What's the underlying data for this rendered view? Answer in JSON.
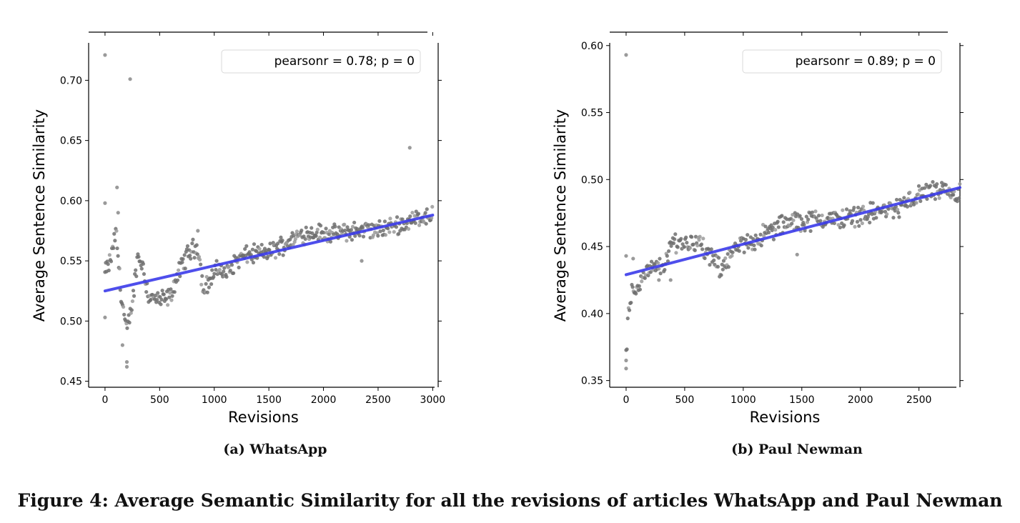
{
  "figure": {
    "title": "Figure 4: Average Semantic Similarity for all the revisions of articles WhatsApp and Paul Newman"
  },
  "colors": {
    "points": "#6e6e6e",
    "points_light": "#9a9a9a",
    "regression": "#3b3bea",
    "axes": "#000000"
  },
  "chart_data": [
    {
      "id": "whatsapp",
      "type": "scatter",
      "caption": "(a) WhatsApp",
      "xlabel": "Revisions",
      "ylabel": "Average Sentence Similarity",
      "xlim": [
        -150,
        3050
      ],
      "ylim": [
        0.445,
        0.74
      ],
      "xticks": [
        0,
        500,
        1000,
        1500,
        2000,
        2500,
        3000
      ],
      "yticks": [
        0.45,
        0.5,
        0.55,
        0.6,
        0.65,
        0.7
      ],
      "ytick_labels": [
        "0.45",
        "0.50",
        "0.55",
        "0.60",
        "0.65",
        "0.70"
      ],
      "legend": "pearsonr = 0.78; p = 0",
      "legend_position": "top-right",
      "regression": [
        [
          0,
          0.525
        ],
        [
          3000,
          0.588
        ]
      ],
      "trend": [
        [
          0,
          0.54
        ],
        [
          50,
          0.55
        ],
        [
          100,
          0.575
        ],
        [
          150,
          0.52
        ],
        [
          200,
          0.49
        ],
        [
          250,
          0.515
        ],
        [
          300,
          0.555
        ],
        [
          350,
          0.545
        ],
        [
          400,
          0.52
        ],
        [
          500,
          0.517
        ],
        [
          600,
          0.52
        ],
        [
          650,
          0.535
        ],
        [
          700,
          0.545
        ],
        [
          750,
          0.555
        ],
        [
          800,
          0.56
        ],
        [
          850,
          0.562
        ],
        [
          900,
          0.525
        ],
        [
          1000,
          0.54
        ],
        [
          1050,
          0.545
        ],
        [
          1100,
          0.538
        ],
        [
          1200,
          0.55
        ],
        [
          1300,
          0.555
        ],
        [
          1400,
          0.556
        ],
        [
          1500,
          0.557
        ],
        [
          1600,
          0.562
        ],
        [
          1700,
          0.567
        ],
        [
          1800,
          0.572
        ],
        [
          1900,
          0.574
        ],
        [
          2000,
          0.573
        ],
        [
          2100,
          0.572
        ],
        [
          2200,
          0.574
        ],
        [
          2300,
          0.575
        ],
        [
          2400,
          0.576
        ],
        [
          2500,
          0.575
        ],
        [
          2600,
          0.578
        ],
        [
          2700,
          0.58
        ],
        [
          2800,
          0.583
        ],
        [
          2900,
          0.587
        ],
        [
          3000,
          0.588
        ]
      ],
      "outliers": [
        [
          0,
          0.721
        ],
        [
          230,
          0.701
        ],
        [
          2790,
          0.644
        ],
        [
          110,
          0.611
        ],
        [
          0,
          0.598
        ],
        [
          850,
          0.575
        ],
        [
          2350,
          0.55
        ],
        [
          0,
          0.503
        ],
        [
          200,
          0.462
        ],
        [
          200,
          0.466
        ],
        [
          120,
          0.59
        ],
        [
          160,
          0.48
        ]
      ]
    },
    {
      "id": "paul-newman",
      "type": "scatter",
      "caption": "(b) Paul Newman",
      "xlabel": "Revisions",
      "ylabel": "Average Sentence Similarity",
      "xlim": [
        -140,
        2850
      ],
      "ylim": [
        0.345,
        0.61
      ],
      "xticks": [
        0,
        500,
        1000,
        1500,
        2000,
        2500
      ],
      "yticks": [
        0.35,
        0.4,
        0.45,
        0.5,
        0.55,
        0.6
      ],
      "ytick_labels": [
        "0.35",
        "0.40",
        "0.45",
        "0.50",
        "0.55",
        "0.60"
      ],
      "legend": "pearsonr = 0.89; p = 0",
      "legend_position": "top-right",
      "regression": [
        [
          0,
          0.429
        ],
        [
          2850,
          0.494
        ]
      ],
      "trend": [
        [
          0,
          0.37
        ],
        [
          20,
          0.4
        ],
        [
          50,
          0.415
        ],
        [
          100,
          0.42
        ],
        [
          150,
          0.43
        ],
        [
          200,
          0.432
        ],
        [
          300,
          0.435
        ],
        [
          350,
          0.44
        ],
        [
          400,
          0.455
        ],
        [
          500,
          0.452
        ],
        [
          600,
          0.455
        ],
        [
          650,
          0.45
        ],
        [
          700,
          0.443
        ],
        [
          750,
          0.44
        ],
        [
          800,
          0.432
        ],
        [
          850,
          0.44
        ],
        [
          900,
          0.445
        ],
        [
          950,
          0.448
        ],
        [
          1000,
          0.452
        ],
        [
          1100,
          0.455
        ],
        [
          1200,
          0.46
        ],
        [
          1300,
          0.465
        ],
        [
          1400,
          0.468
        ],
        [
          1500,
          0.469
        ],
        [
          1600,
          0.47
        ],
        [
          1700,
          0.471
        ],
        [
          1800,
          0.47
        ],
        [
          1900,
          0.472
        ],
        [
          2000,
          0.474
        ],
        [
          2100,
          0.475
        ],
        [
          2200,
          0.477
        ],
        [
          2300,
          0.478
        ],
        [
          2400,
          0.483
        ],
        [
          2500,
          0.488
        ],
        [
          2600,
          0.492
        ],
        [
          2700,
          0.49
        ],
        [
          2800,
          0.488
        ],
        [
          2850,
          0.49
        ]
      ],
      "outliers": [
        [
          0,
          0.593
        ],
        [
          0,
          0.359
        ],
        [
          0,
          0.365
        ],
        [
          1460,
          0.444
        ],
        [
          0,
          0.443
        ],
        [
          60,
          0.441
        ],
        [
          380,
          0.425
        ],
        [
          280,
          0.425
        ]
      ]
    }
  ]
}
